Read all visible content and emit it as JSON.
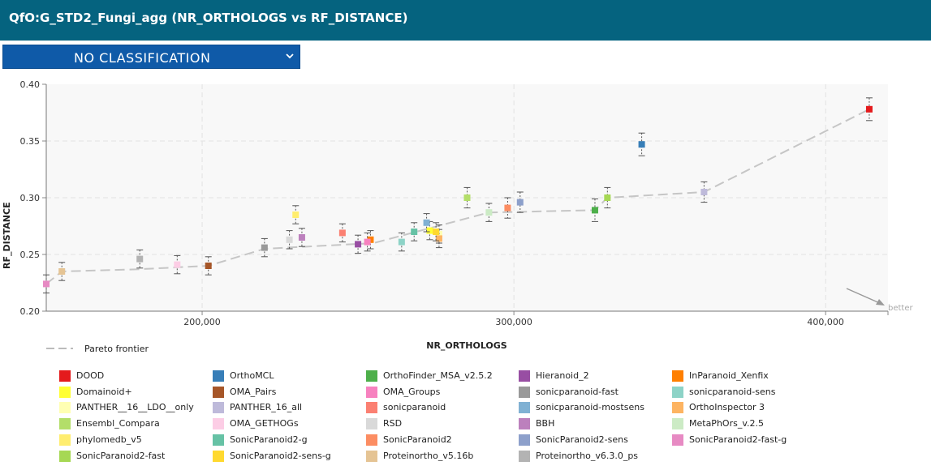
{
  "header": {
    "title": "QfO:G_STD2_Fungi_agg (NR_ORTHOLOGS vs RF_DISTANCE)",
    "background": "#05637f"
  },
  "classification_select": {
    "selected": "NO CLASSIFICATION",
    "icon": "chevron-down-icon"
  },
  "chart_data": {
    "type": "scatter",
    "xlabel": "NR_ORTHOLOGS",
    "ylabel": "RF_DISTANCE",
    "xlim": [
      150000,
      420000
    ],
    "ylim": [
      0.2,
      0.4
    ],
    "x_ticks": [
      200000,
      300000,
      400000
    ],
    "x_tick_labels": [
      "200,000",
      "300,000",
      "400,000"
    ],
    "y_ticks": [
      0.2,
      0.25,
      0.3,
      0.35,
      0.4
    ],
    "y_tick_labels": [
      "0.20",
      "0.25",
      "0.30",
      "0.35",
      "0.40"
    ],
    "grid": true,
    "better_label": "better",
    "pareto_label": "Pareto frontier",
    "pareto": [
      [
        150000,
        0.224
      ],
      [
        155000,
        0.235
      ],
      [
        180000,
        0.237
      ],
      [
        202000,
        0.24
      ],
      [
        220000,
        0.255
      ],
      [
        255000,
        0.26
      ],
      [
        292000,
        0.287
      ],
      [
        326000,
        0.289
      ],
      [
        330000,
        0.3
      ],
      [
        361000,
        0.305
      ],
      [
        414000,
        0.378
      ]
    ],
    "points": [
      {
        "name": "DOOD",
        "color": "#e41a1c",
        "x": 414000,
        "y": 0.378,
        "err": 0.01
      },
      {
        "name": "OrthoMCL",
        "color": "#377eb8",
        "x": 341000,
        "y": 0.347,
        "err": 0.01
      },
      {
        "name": "OrthoFinder_MSA_v2.5.2",
        "color": "#4daf4a",
        "x": 326000,
        "y": 0.289,
        "err": 0.01
      },
      {
        "name": "Hieranoid_2",
        "color": "#984ea3",
        "x": 250000,
        "y": 0.259,
        "err": 0.008
      },
      {
        "name": "InParanoid_Xenfix",
        "color": "#ff7f00",
        "x": 254000,
        "y": 0.263,
        "err": 0.008
      },
      {
        "name": "Domainoid+",
        "color": "#ffff33",
        "x": 273000,
        "y": 0.271,
        "err": 0.008
      },
      {
        "name": "OMA_Pairs",
        "color": "#a65628",
        "x": 202000,
        "y": 0.24,
        "err": 0.008
      },
      {
        "name": "OMA_Groups",
        "color": "#f781bf",
        "x": 253000,
        "y": 0.261,
        "err": 0.008
      },
      {
        "name": "sonicparanoid-fast",
        "color": "#999999",
        "x": 220000,
        "y": 0.256,
        "err": 0.008
      },
      {
        "name": "sonicparanoid-sens",
        "color": "#8dd3c7",
        "x": 264000,
        "y": 0.261,
        "err": 0.008
      },
      {
        "name": "PANTHER__16__LDO__only",
        "color": "#ffffb3",
        "x": 276000,
        "y": 0.268,
        "err": 0.008
      },
      {
        "name": "PANTHER_16_all",
        "color": "#bebada",
        "x": 361000,
        "y": 0.305,
        "err": 0.009
      },
      {
        "name": "sonicparanoid",
        "color": "#fb8072",
        "x": 245000,
        "y": 0.269,
        "err": 0.008
      },
      {
        "name": "sonicparanoid-mostsens",
        "color": "#80b1d3",
        "x": 272000,
        "y": 0.278,
        "err": 0.008
      },
      {
        "name": "OrthoInspector 3",
        "color": "#fdb462",
        "x": 276000,
        "y": 0.264,
        "err": 0.008
      },
      {
        "name": "Ensembl_Compara",
        "color": "#b3de69",
        "x": 285000,
        "y": 0.3,
        "err": 0.009
      },
      {
        "name": "OMA_GETHOGs",
        "color": "#fccde5",
        "x": 192000,
        "y": 0.241,
        "err": 0.008
      },
      {
        "name": "RSD",
        "color": "#d9d9d9",
        "x": 228000,
        "y": 0.263,
        "err": 0.008
      },
      {
        "name": "BBH",
        "color": "#bc80bd",
        "x": 232000,
        "y": 0.265,
        "err": 0.008
      },
      {
        "name": "MetaPhOrs_v.2.5",
        "color": "#ccebc5",
        "x": 292000,
        "y": 0.287,
        "err": 0.008
      },
      {
        "name": "phylomedb_v5",
        "color": "#ffed6f",
        "x": 230000,
        "y": 0.285,
        "err": 0.008
      },
      {
        "name": "SonicParanoid2-g",
        "color": "#66c2a5",
        "x": 268000,
        "y": 0.27,
        "err": 0.008
      },
      {
        "name": "SonicParanoid2",
        "color": "#fc8d62",
        "x": 298000,
        "y": 0.291,
        "err": 0.009
      },
      {
        "name": "SonicParanoid2-sens",
        "color": "#8da0cb",
        "x": 302000,
        "y": 0.296,
        "err": 0.009
      },
      {
        "name": "SonicParanoid2-fast-g",
        "color": "#e78ac3",
        "x": 150000,
        "y": 0.224,
        "err": 0.008
      },
      {
        "name": "SonicParanoid2-fast",
        "color": "#a6d854",
        "x": 330000,
        "y": 0.3,
        "err": 0.009
      },
      {
        "name": "SonicParanoid2-sens-g",
        "color": "#ffd92f",
        "x": 275000,
        "y": 0.27,
        "err": 0.008
      },
      {
        "name": "Proteinortho_v5.16b",
        "color": "#e5c494",
        "x": 155000,
        "y": 0.235,
        "err": 0.008
      },
      {
        "name": "Proteinortho_v6.3.0_ps",
        "color": "#b3b3b3",
        "x": 180000,
        "y": 0.246,
        "err": 0.008
      }
    ]
  }
}
